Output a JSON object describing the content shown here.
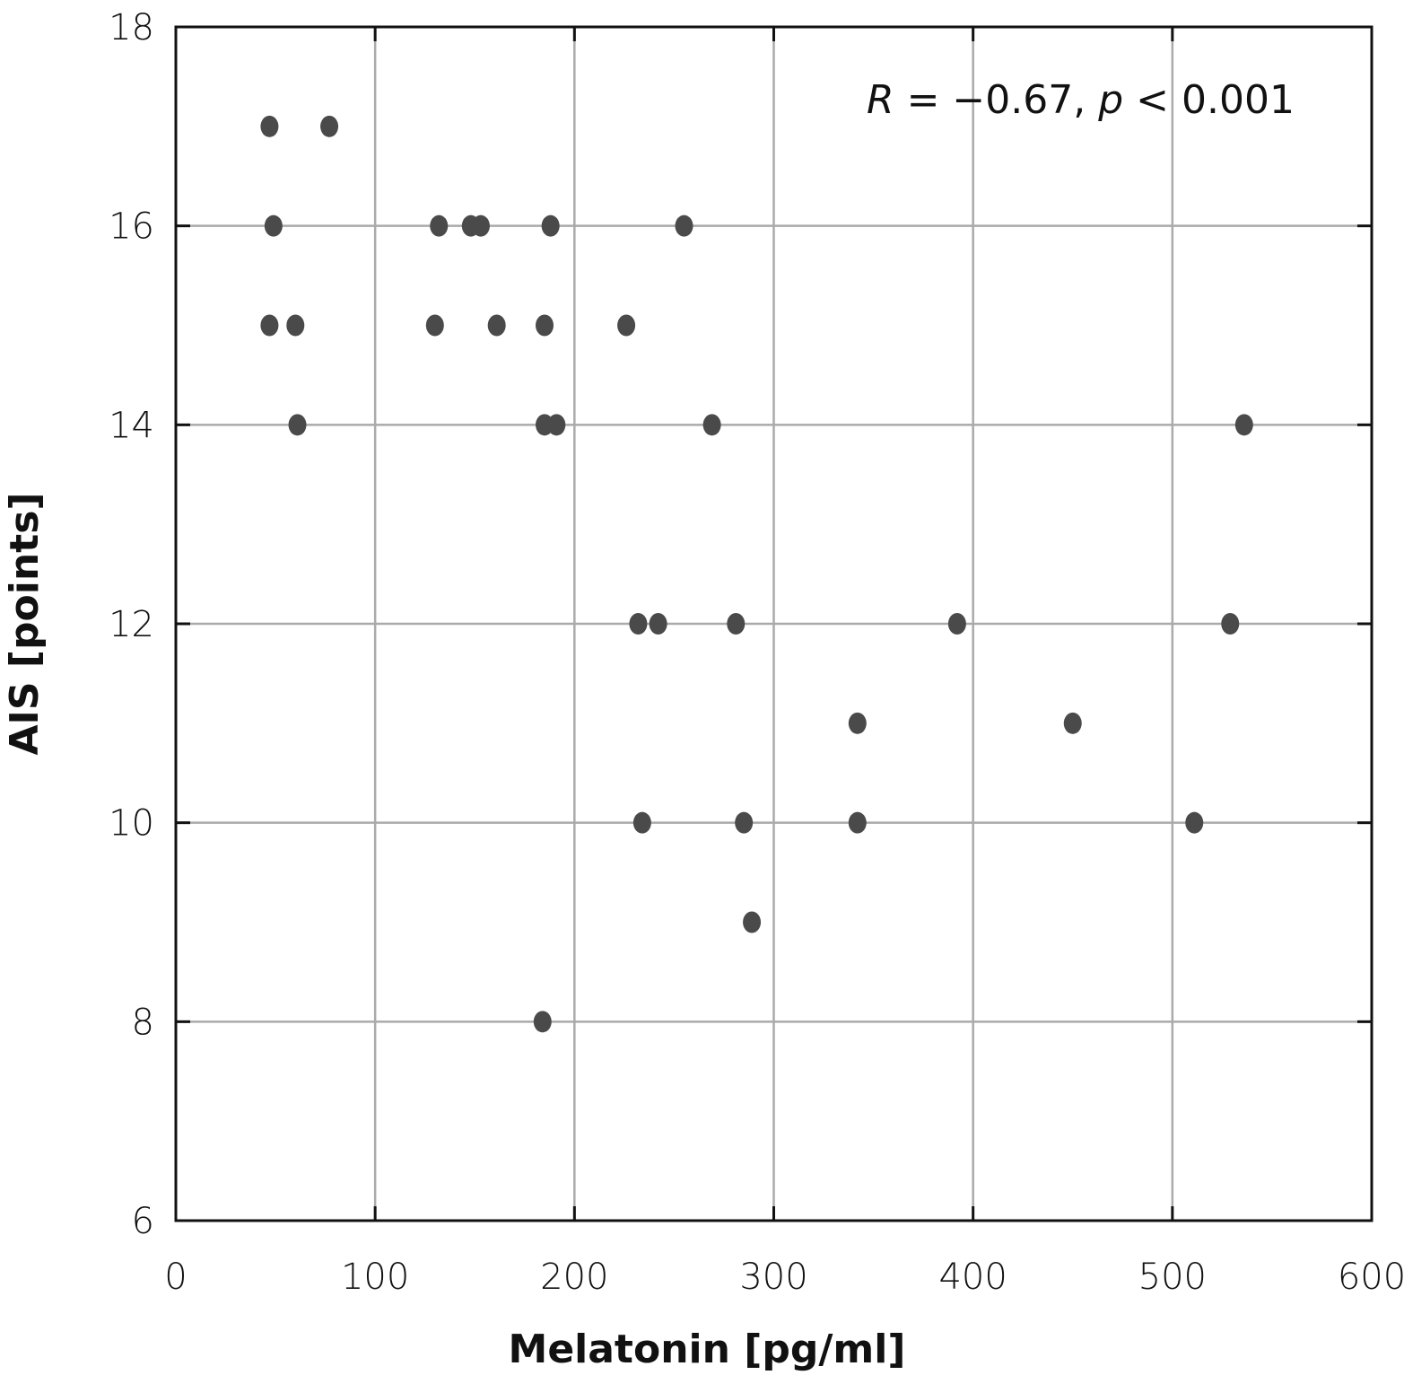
{
  "chart_data": {
    "type": "scatter",
    "title": "",
    "xlabel": "Melatonin [pg/ml]",
    "ylabel": "AIS [points]",
    "xlim": [
      0,
      600
    ],
    "ylim": [
      6,
      18
    ],
    "xticks": [
      0,
      100,
      200,
      300,
      400,
      500,
      600
    ],
    "yticks": [
      6,
      8,
      10,
      12,
      14,
      16,
      18
    ],
    "grid": true,
    "annotation": {
      "R_symbol": "R",
      "R_text": " = −0.67, ",
      "p_symbol": "p",
      "p_text": " < 0.001"
    },
    "point_color": "#4a4a4a",
    "grid_color": "#aaaaaa",
    "points": [
      {
        "x": 47,
        "y": 17
      },
      {
        "x": 77,
        "y": 17
      },
      {
        "x": 49,
        "y": 16
      },
      {
        "x": 132,
        "y": 16
      },
      {
        "x": 148,
        "y": 16
      },
      {
        "x": 153,
        "y": 16
      },
      {
        "x": 188,
        "y": 16
      },
      {
        "x": 255,
        "y": 16
      },
      {
        "x": 47,
        "y": 15
      },
      {
        "x": 60,
        "y": 15
      },
      {
        "x": 130,
        "y": 15
      },
      {
        "x": 161,
        "y": 15
      },
      {
        "x": 185,
        "y": 15
      },
      {
        "x": 226,
        "y": 15
      },
      {
        "x": 61,
        "y": 14
      },
      {
        "x": 185,
        "y": 14
      },
      {
        "x": 191,
        "y": 14
      },
      {
        "x": 269,
        "y": 14
      },
      {
        "x": 536,
        "y": 14
      },
      {
        "x": 232,
        "y": 12
      },
      {
        "x": 242,
        "y": 12
      },
      {
        "x": 281,
        "y": 12
      },
      {
        "x": 392,
        "y": 12
      },
      {
        "x": 529,
        "y": 12
      },
      {
        "x": 342,
        "y": 11
      },
      {
        "x": 450,
        "y": 11
      },
      {
        "x": 234,
        "y": 10
      },
      {
        "x": 285,
        "y": 10
      },
      {
        "x": 342,
        "y": 10
      },
      {
        "x": 511,
        "y": 10
      },
      {
        "x": 289,
        "y": 9
      },
      {
        "x": 184,
        "y": 8
      }
    ]
  }
}
